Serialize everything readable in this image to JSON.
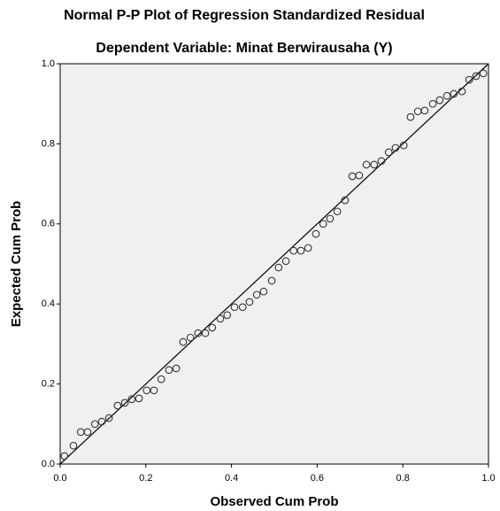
{
  "chart_data": {
    "type": "scatter",
    "title": "Normal P-P Plot of Regression Standardized Residual",
    "subtitle": "Dependent Variable: Minat Berwirausaha (Y)",
    "x_label": "Observed Cum Prob",
    "y_label": "Expected Cum Prob",
    "xlim": [
      0,
      1
    ],
    "ylim": [
      0,
      1
    ],
    "xticks": [
      {
        "value": 0,
        "label": "0.0"
      },
      {
        "value": 0.2,
        "label": "0.2"
      },
      {
        "value": 0.4,
        "label": "0.4"
      },
      {
        "value": 0.6,
        "label": "0.6"
      },
      {
        "value": 0.8,
        "label": "0.8"
      },
      {
        "value": 1,
        "label": "1.0"
      }
    ],
    "yticks": [
      {
        "value": 0,
        "label": "0.0"
      },
      {
        "value": 0.2,
        "label": "0.2"
      },
      {
        "value": 0.4,
        "label": "0.4"
      },
      {
        "value": 0.6,
        "label": "0.6"
      },
      {
        "value": 0.8,
        "label": "0.8"
      },
      {
        "value": 1,
        "label": "1.0"
      }
    ],
    "color": "#333333",
    "reference_line": true,
    "x": [
      0.01,
      0.031,
      0.048,
      0.064,
      0.081,
      0.097,
      0.114,
      0.134,
      0.151,
      0.167,
      0.184,
      0.202,
      0.219,
      0.236,
      0.254,
      0.271,
      0.287,
      0.304,
      0.322,
      0.339,
      0.355,
      0.374,
      0.39,
      0.407,
      0.426,
      0.442,
      0.459,
      0.475,
      0.494,
      0.51,
      0.527,
      0.545,
      0.562,
      0.579,
      0.597,
      0.614,
      0.63,
      0.647,
      0.665,
      0.682,
      0.698,
      0.715,
      0.733,
      0.75,
      0.767,
      0.783,
      0.802,
      0.818,
      0.835,
      0.851,
      0.87,
      0.886,
      0.903,
      0.919,
      0.938,
      0.955,
      0.971,
      0.988
    ],
    "values": [
      0.02,
      0.046,
      0.08,
      0.08,
      0.1,
      0.106,
      0.115,
      0.146,
      0.153,
      0.162,
      0.164,
      0.184,
      0.184,
      0.212,
      0.235,
      0.239,
      0.305,
      0.316,
      0.327,
      0.327,
      0.341,
      0.363,
      0.372,
      0.392,
      0.392,
      0.405,
      0.423,
      0.431,
      0.458,
      0.491,
      0.507,
      0.533,
      0.533,
      0.54,
      0.575,
      0.6,
      0.613,
      0.631,
      0.659,
      0.719,
      0.721,
      0.748,
      0.748,
      0.757,
      0.779,
      0.79,
      0.796,
      0.867,
      0.881,
      0.883,
      0.9,
      0.909,
      0.92,
      0.925,
      0.931,
      0.96,
      0.969,
      0.976
    ]
  }
}
